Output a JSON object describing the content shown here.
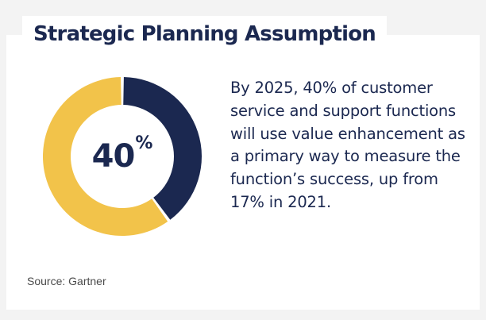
{
  "title": "Strategic Planning Assumption",
  "statement": "By 2025, 40% of customer service and support functions will use value enhancement as a primary way to measure the function’s success, up from 17% in 2021.",
  "source": "Source: Gartner",
  "colors": {
    "navy": "#1b2850",
    "gold": "#f2c34a",
    "background": "#f3f3f3",
    "card": "#ffffff"
  },
  "chart_data": {
    "type": "pie",
    "title": "",
    "center_label": {
      "value": "40",
      "unit": "%"
    },
    "slices": [
      {
        "label": "",
        "value": 40,
        "color": "#1b2850"
      },
      {
        "label": "",
        "value": 60,
        "color": "#f2c34a"
      }
    ]
  }
}
